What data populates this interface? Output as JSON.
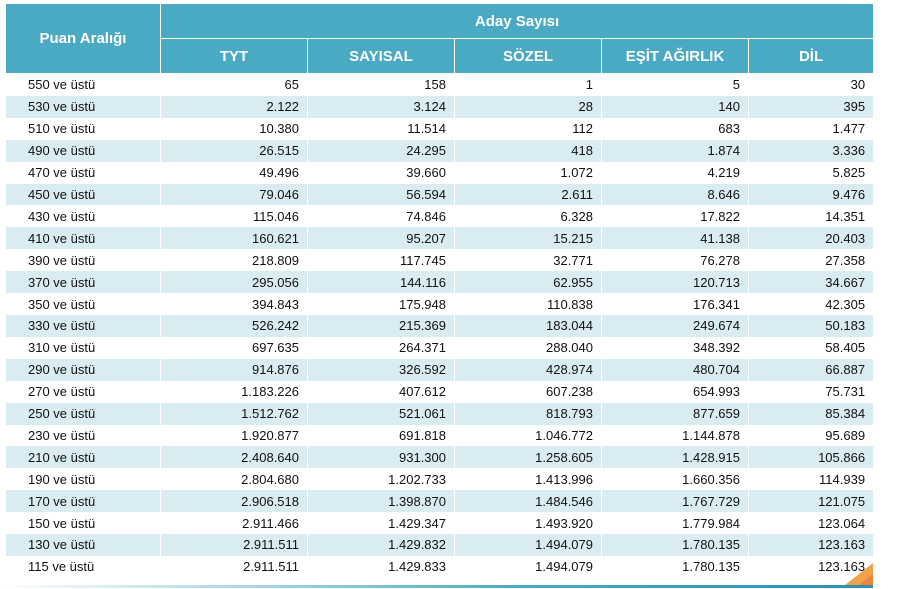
{
  "table": {
    "row_header": "Puan Aralığı",
    "group_header": "Aday Sayısı",
    "columns": [
      "TYT",
      "SAYISAL",
      "SÖZEL",
      "EŞİT AĞIRLIK",
      "DİL"
    ],
    "rows": [
      {
        "label": "550 ve üstü",
        "values": [
          "65",
          "158",
          "1",
          "5",
          "30"
        ]
      },
      {
        "label": "530 ve üstü",
        "values": [
          "2.122",
          "3.124",
          "28",
          "140",
          "395"
        ]
      },
      {
        "label": "510 ve üstü",
        "values": [
          "10.380",
          "11.514",
          "112",
          "683",
          "1.477"
        ]
      },
      {
        "label": "490 ve üstü",
        "values": [
          "26.515",
          "24.295",
          "418",
          "1.874",
          "3.336"
        ]
      },
      {
        "label": "470 ve üstü",
        "values": [
          "49.496",
          "39.660",
          "1.072",
          "4.219",
          "5.825"
        ]
      },
      {
        "label": "450 ve üstü",
        "values": [
          "79.046",
          "56.594",
          "2.611",
          "8.646",
          "9.476"
        ]
      },
      {
        "label": "430 ve üstü",
        "values": [
          "115.046",
          "74.846",
          "6.328",
          "17.822",
          "14.351"
        ]
      },
      {
        "label": "410 ve üstü",
        "values": [
          "160.621",
          "95.207",
          "15.215",
          "41.138",
          "20.403"
        ]
      },
      {
        "label": "390 ve üstü",
        "values": [
          "218.809",
          "117.745",
          "32.771",
          "76.278",
          "27.358"
        ]
      },
      {
        "label": "370 ve üstü",
        "values": [
          "295.056",
          "144.116",
          "62.955",
          "120.713",
          "34.667"
        ]
      },
      {
        "label": "350 ve üstü",
        "values": [
          "394.843",
          "175.948",
          "110.838",
          "176.341",
          "42.305"
        ]
      },
      {
        "label": "330 ve üstü",
        "values": [
          "526.242",
          "215.369",
          "183.044",
          "249.674",
          "50.183"
        ]
      },
      {
        "label": "310 ve üstü",
        "values": [
          "697.635",
          "264.371",
          "288.040",
          "348.392",
          "58.405"
        ]
      },
      {
        "label": "290 ve üstü",
        "values": [
          "914.876",
          "326.592",
          "428.974",
          "480.704",
          "66.887"
        ]
      },
      {
        "label": "270 ve üstü",
        "values": [
          "1.183.226",
          "407.612",
          "607.238",
          "654.993",
          "75.731"
        ]
      },
      {
        "label": "250 ve üstü",
        "values": [
          "1.512.762",
          "521.061",
          "818.793",
          "877.659",
          "85.384"
        ]
      },
      {
        "label": "230 ve üstü",
        "values": [
          "1.920.877",
          "691.818",
          "1.046.772",
          "1.144.878",
          "95.689"
        ]
      },
      {
        "label": "210 ve üstü",
        "values": [
          "2.408.640",
          "931.300",
          "1.258.605",
          "1.428.915",
          "105.866"
        ]
      },
      {
        "label": "190 ve üstü",
        "values": [
          "2.804.680",
          "1.202.733",
          "1.413.996",
          "1.660.356",
          "114.939"
        ]
      },
      {
        "label": "170 ve üstü",
        "values": [
          "2.906.518",
          "1.398.870",
          "1.484.546",
          "1.767.729",
          "121.075"
        ]
      },
      {
        "label": "150 ve üstü",
        "values": [
          "2.911.466",
          "1.429.347",
          "1.493.920",
          "1.779.984",
          "123.064"
        ]
      },
      {
        "label": "130 ve üstü",
        "values": [
          "2.911.511",
          "1.429.832",
          "1.494.079",
          "1.780.135",
          "123.163"
        ]
      },
      {
        "label": "115 ve üstü",
        "values": [
          "2.911.511",
          "1.429.833",
          "1.494.079",
          "1.780.135",
          "123.163"
        ]
      }
    ]
  },
  "colors": {
    "header_bg": "#4aaac3",
    "header_text": "#ffffff",
    "row_alt_bg": "#d9ecf2",
    "row_bg": "#ffffff",
    "corner_accent": "#f0a24b"
  }
}
